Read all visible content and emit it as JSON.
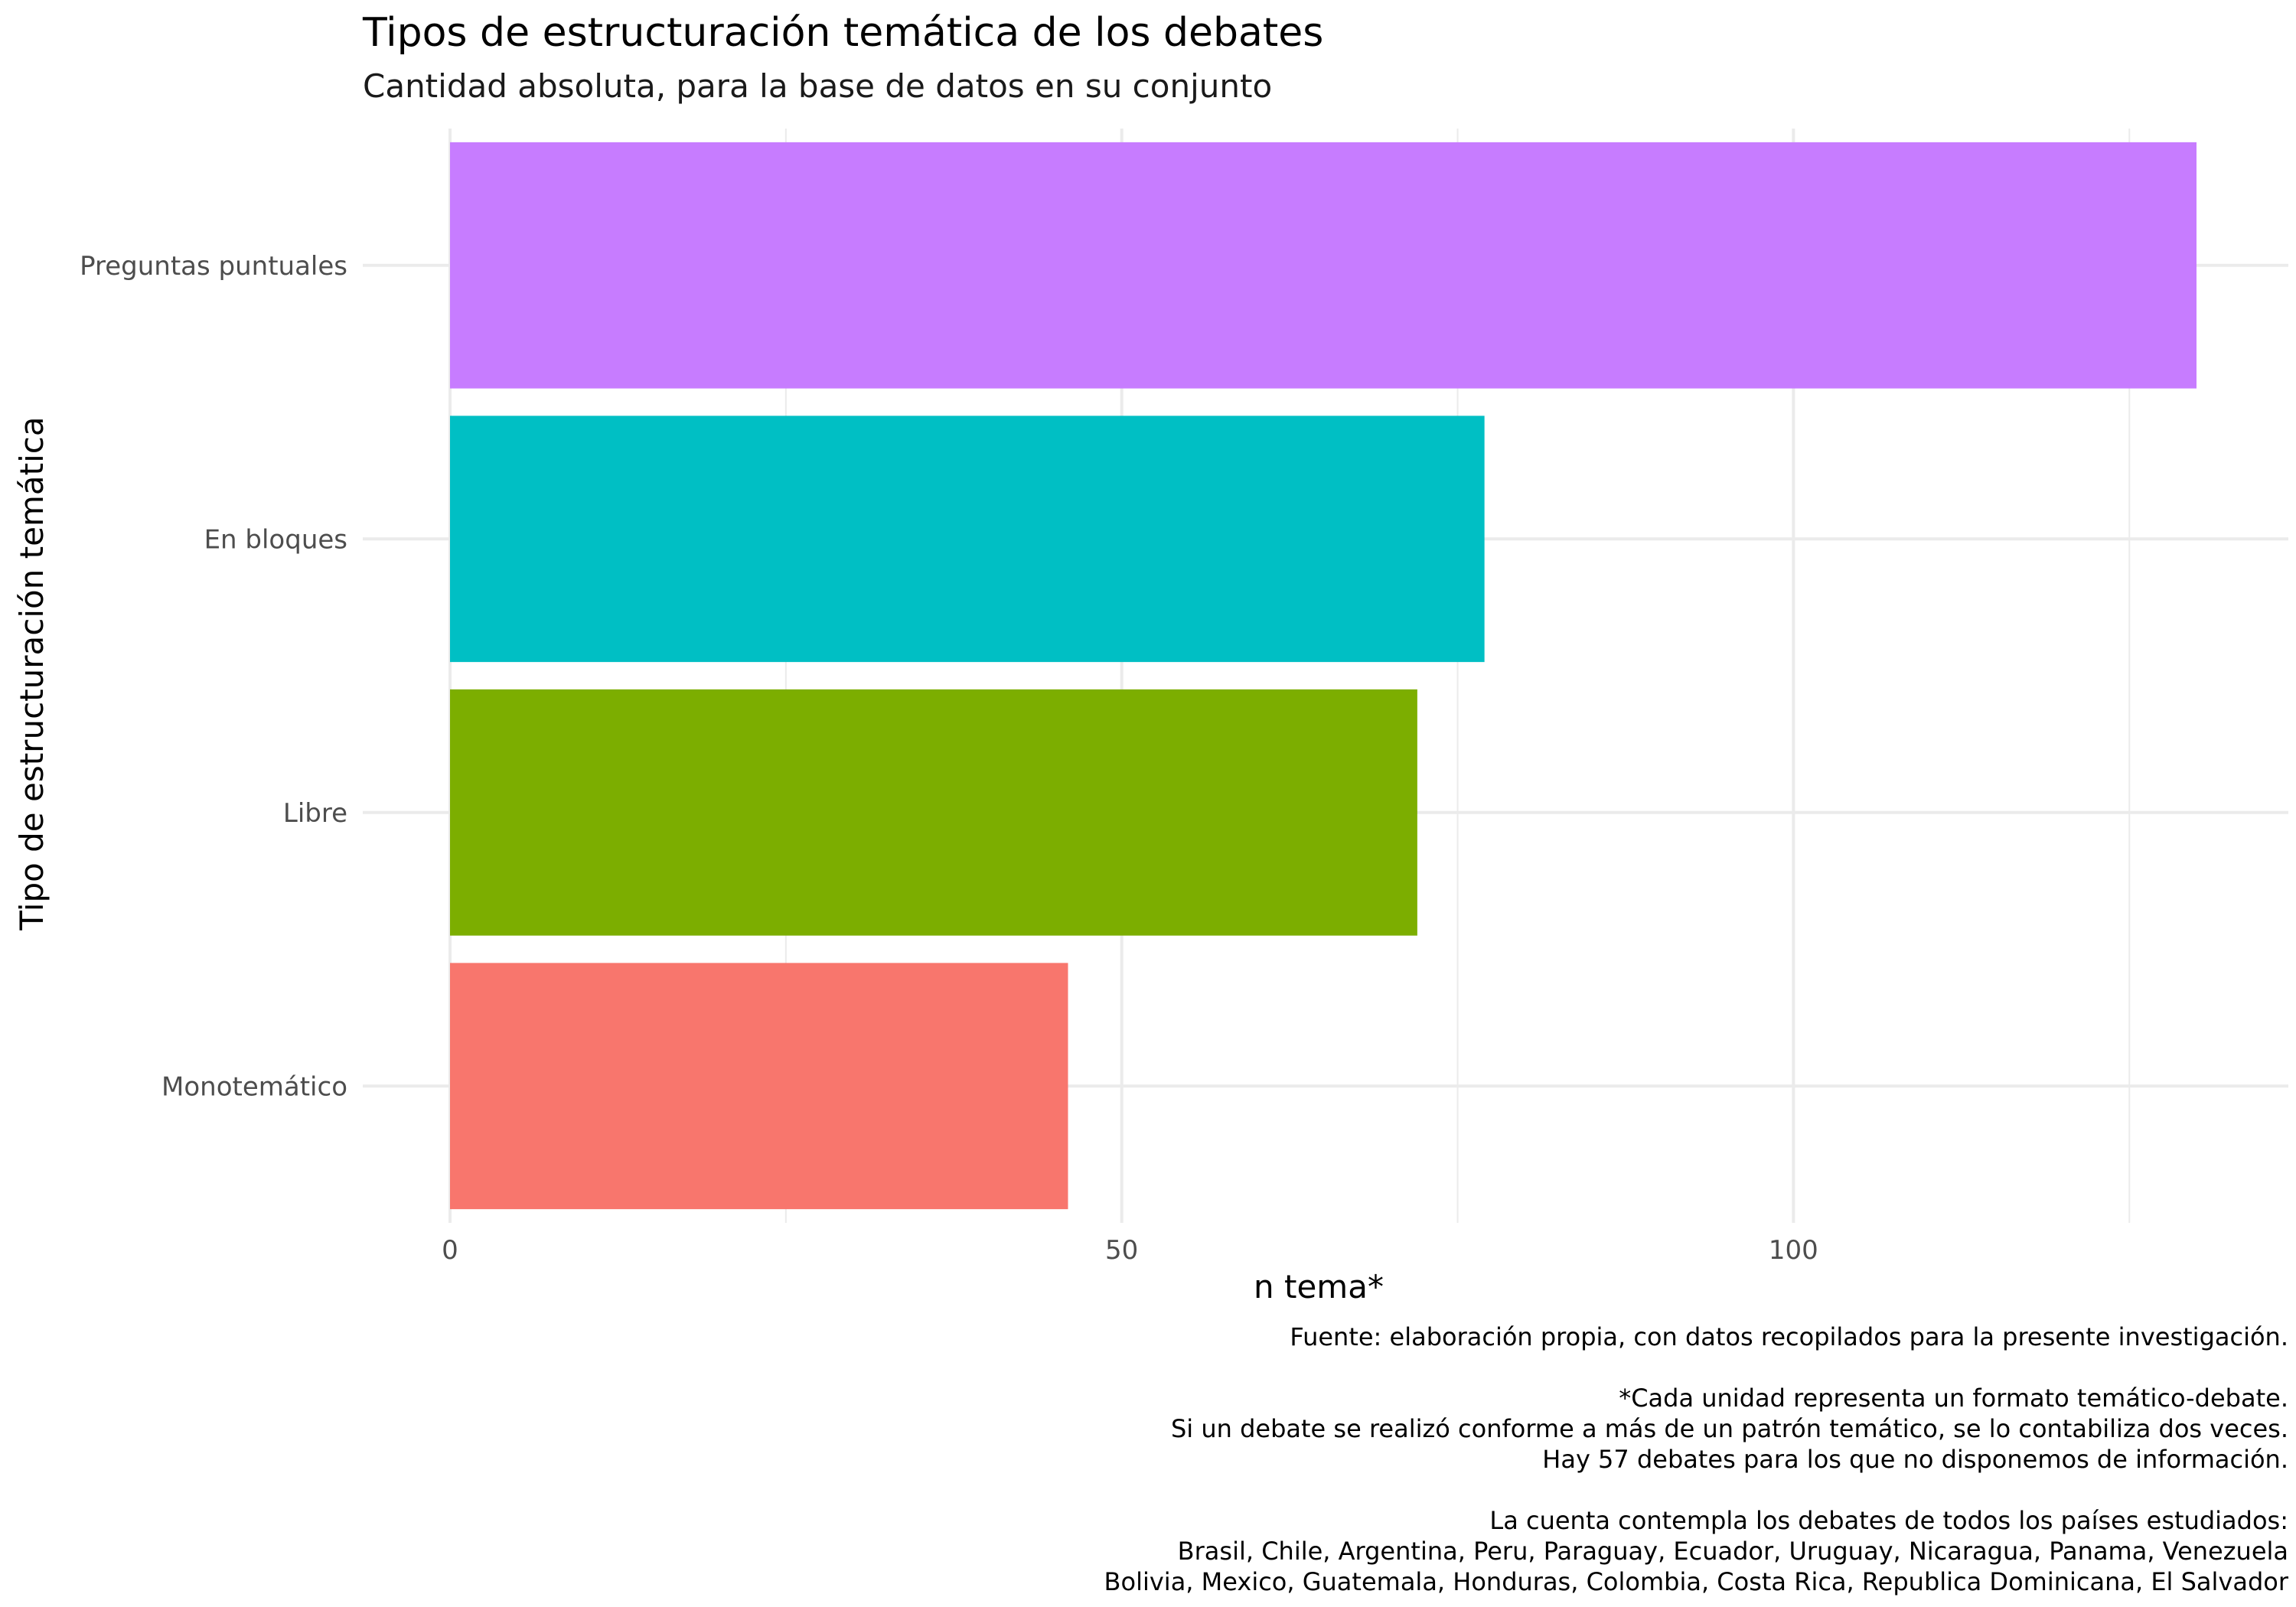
{
  "chart_data": {
    "type": "bar",
    "orientation": "horizontal",
    "title": "Tipos de estructuración temática de los debates",
    "subtitle": "Cantidad absoluta, para la base de datos en su conjunto",
    "xlabel": "n tema*",
    "ylabel": "Tipo de estructuración temática",
    "categories": [
      "Preguntas puntuales",
      "En bloques",
      "Libre",
      "Monotemático"
    ],
    "values": [
      130,
      77,
      72,
      46
    ],
    "colors": [
      "#C77CFF",
      "#00BFC4",
      "#7CAE00",
      "#F8766D"
    ],
    "xlim": [
      0,
      136
    ],
    "xticks": [
      0,
      50,
      100
    ],
    "grid": true,
    "legend": "none"
  },
  "caption": [
    "Fuente: elaboración propia, con datos recopilados para la presente investigación.",
    "",
    "*Cada unidad representa un formato temático-debate.",
    "Si un debate se realizó conforme a más de un patrón temático, se lo contabiliza dos veces.",
    "Hay 57 debates para los que no disponemos de información.",
    "",
    "La cuenta contempla los debates de todos los países estudiados:",
    "Brasil, Chile, Argentina, Peru, Paraguay, Ecuador, Uruguay, Nicaragua, Panama, Venezuela",
    "Bolivia, Mexico, Guatemala, Honduras, Colombia, Costa Rica, Republica Dominicana, El Salvador"
  ]
}
